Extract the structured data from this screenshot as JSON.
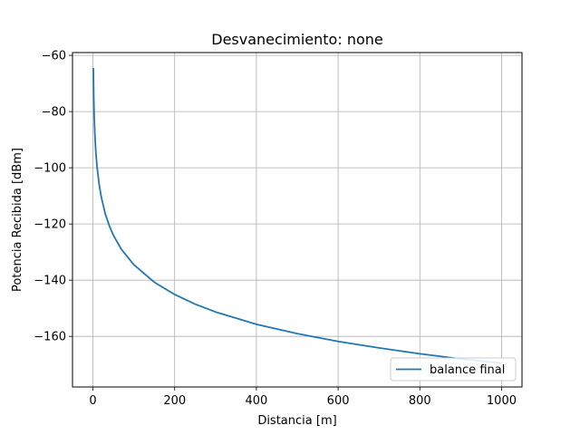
{
  "chart_data": {
    "type": "line",
    "title": "Desvanecimiento: none",
    "xlabel": "Distancia [m]",
    "ylabel": "Potencia Recibida [dBm]",
    "xlim": [
      -50,
      1050
    ],
    "ylim": [
      -178,
      -59
    ],
    "xticks": [
      0,
      200,
      400,
      600,
      800,
      1000
    ],
    "yticks": [
      -160,
      -140,
      -120,
      -100,
      -80,
      -60
    ],
    "xtick_labels": [
      "0",
      "200",
      "400",
      "600",
      "800",
      "1000"
    ],
    "ytick_labels": [
      "−160",
      "−140",
      "−120",
      "−100",
      "−80",
      "−60"
    ],
    "grid": true,
    "legend_position": "lower-right",
    "series": [
      {
        "name": "balance final",
        "color": "#1f77b4",
        "x": [
          1,
          2,
          3,
          5,
          7,
          10,
          15,
          20,
          30,
          40,
          50,
          70,
          100,
          150,
          200,
          250,
          300,
          400,
          500,
          600,
          700,
          800,
          900,
          1000
        ],
        "y": [
          -64.5,
          -75.0,
          -81.2,
          -89.0,
          -94.1,
          -99.5,
          -105.7,
          -110.1,
          -116.3,
          -120.6,
          -124.0,
          -129.1,
          -134.5,
          -140.7,
          -145.1,
          -148.5,
          -151.3,
          -155.7,
          -159.0,
          -161.8,
          -164.1,
          -166.2,
          -168.0,
          -169.5
        ]
      }
    ]
  }
}
